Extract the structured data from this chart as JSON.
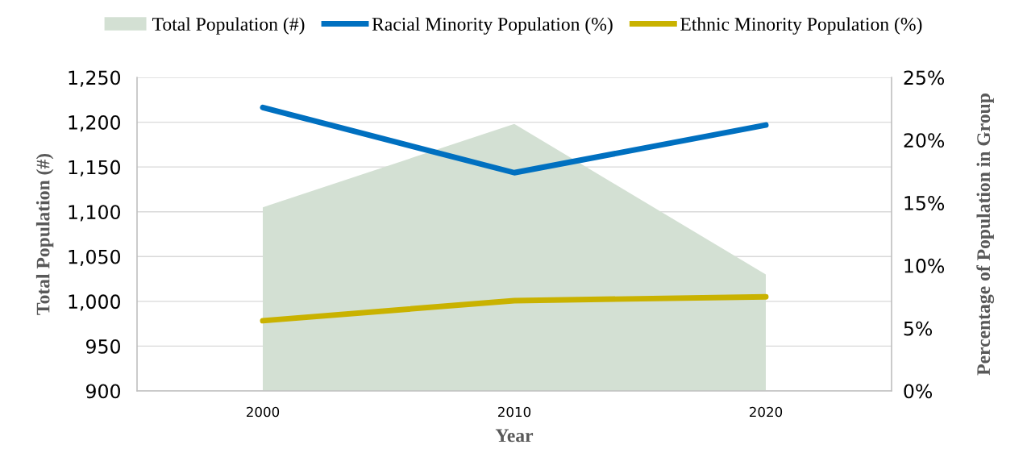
{
  "chart_data": {
    "type": "area",
    "xlabel": "Year",
    "ylabel": "Total Population (#)",
    "y2label": "Percentage of Population in Group",
    "categories": [
      "2000",
      "2010",
      "2020"
    ],
    "series": [
      {
        "name": "Total Population (#)",
        "type": "area",
        "color": "#d3e0d3",
        "values": [
          1105,
          1198,
          1030
        ]
      },
      {
        "name": "Racial Minority Population (%)",
        "type": "line",
        "axis": "y2",
        "color": "#0070c0",
        "values": [
          22.6,
          17.4,
          21.2
        ]
      },
      {
        "name": "Ethnic Minority Population (%)",
        "type": "line",
        "axis": "y2",
        "color": "#c9b200",
        "values": [
          5.6,
          7.2,
          7.5
        ]
      }
    ],
    "ylim": [
      900,
      1250
    ],
    "yticks": [
      {
        "value": 900,
        "label": "900"
      },
      {
        "value": 950,
        "label": "950"
      },
      {
        "value": 1000,
        "label": "1,000"
      },
      {
        "value": 1050,
        "label": "1,050"
      },
      {
        "value": 1100,
        "label": "1,100"
      },
      {
        "value": 1150,
        "label": "1,150"
      },
      {
        "value": 1200,
        "label": "1,200"
      },
      {
        "value": 1250,
        "label": "1,250"
      }
    ],
    "y2lim": [
      0,
      25
    ],
    "y2ticks": [
      {
        "value": 0,
        "label": "0%"
      },
      {
        "value": 5,
        "label": "5%"
      },
      {
        "value": 10,
        "label": "10%"
      },
      {
        "value": 15,
        "label": "15%"
      },
      {
        "value": 20,
        "label": "20%"
      },
      {
        "value": 25,
        "label": "25%"
      }
    ],
    "grid": "y",
    "legend": "top",
    "marker": "none",
    "line_style": "solid"
  }
}
